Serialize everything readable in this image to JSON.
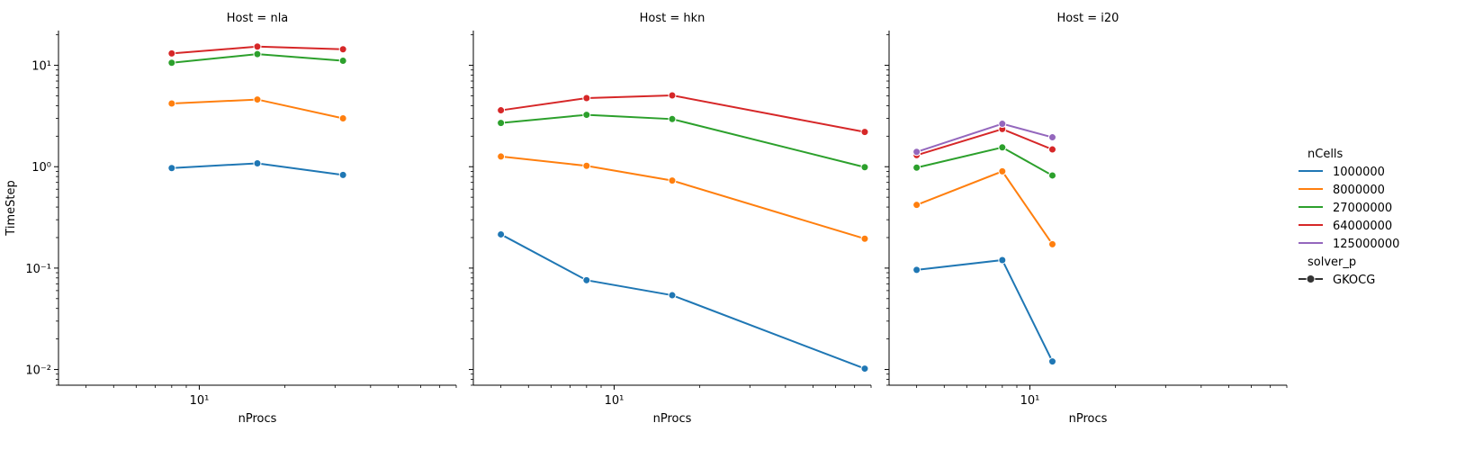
{
  "chart_data": {
    "type": "line",
    "xscale": "log",
    "yscale": "log",
    "sharey": true,
    "xlim": [
      3.2,
      80
    ],
    "ylim": [
      0.007,
      22
    ],
    "grid": false,
    "legend_position": "right",
    "ylabel": "TimeStep",
    "ytick_labels": [
      "10⁻²",
      "10⁻¹",
      "10⁰",
      "10¹"
    ],
    "ytick_values": [
      0.01,
      0.1,
      1,
      10
    ],
    "xtick_labels": [
      "10¹"
    ],
    "xtick_values": [
      10
    ],
    "legend": {
      "hue_title": "nCells",
      "hue_entries": [
        {
          "label": "1000000",
          "color": "#1f77b4"
        },
        {
          "label": "8000000",
          "color": "#ff7f0e"
        },
        {
          "label": "27000000",
          "color": "#2ca02c"
        },
        {
          "label": "64000000",
          "color": "#d62728"
        },
        {
          "label": "125000000",
          "color": "#9467bd"
        }
      ],
      "style_title": "solver_p",
      "style_entries": [
        {
          "label": "GKOCG",
          "color": "#333333"
        }
      ]
    },
    "panels": [
      {
        "title": "Host = nla",
        "xlabel": "nProcs",
        "series": [
          {
            "name": "1000000",
            "x": [
              8,
              16,
              32
            ],
            "y": [
              0.97,
              1.08,
              0.83
            ]
          },
          {
            "name": "8000000",
            "x": [
              8,
              16,
              32
            ],
            "y": [
              4.2,
              4.6,
              3.0
            ]
          },
          {
            "name": "27000000",
            "x": [
              8,
              16,
              32
            ],
            "y": [
              10.6,
              12.9,
              11.1
            ]
          },
          {
            "name": "64000000",
            "x": [
              8,
              16,
              32
            ],
            "y": [
              13.1,
              15.3,
              14.4
            ]
          }
        ]
      },
      {
        "title": "Host = hkn",
        "xlabel": "nProcs",
        "series": [
          {
            "name": "1000000",
            "x": [
              4,
              8,
              16,
              76
            ],
            "y": [
              0.215,
              0.076,
              0.054,
              0.0102
            ]
          },
          {
            "name": "8000000",
            "x": [
              4,
              8,
              16,
              76
            ],
            "y": [
              1.26,
              1.02,
              0.73,
              0.195
            ]
          },
          {
            "name": "27000000",
            "x": [
              4,
              8,
              16,
              76
            ],
            "y": [
              2.7,
              3.25,
              2.95,
              0.99
            ]
          },
          {
            "name": "64000000",
            "x": [
              4,
              8,
              16,
              76
            ],
            "y": [
              3.6,
              4.75,
              5.05,
              2.2
            ]
          }
        ]
      },
      {
        "title": "Host = i20",
        "xlabel": "nProcs",
        "series": [
          {
            "name": "1000000",
            "x": [
              4,
              8,
              12
            ],
            "y": [
              0.096,
              0.12,
              0.012
            ]
          },
          {
            "name": "8000000",
            "x": [
              4,
              8,
              12
            ],
            "y": [
              0.42,
              0.9,
              0.172
            ]
          },
          {
            "name": "27000000",
            "x": [
              4,
              8,
              12
            ],
            "y": [
              0.98,
              1.55,
              0.82
            ]
          },
          {
            "name": "64000000",
            "x": [
              4,
              8,
              12
            ],
            "y": [
              1.3,
              2.35,
              1.48
            ]
          },
          {
            "name": "125000000",
            "x": [
              4,
              8,
              12
            ],
            "y": [
              1.4,
              2.65,
              1.95
            ]
          }
        ]
      }
    ]
  }
}
